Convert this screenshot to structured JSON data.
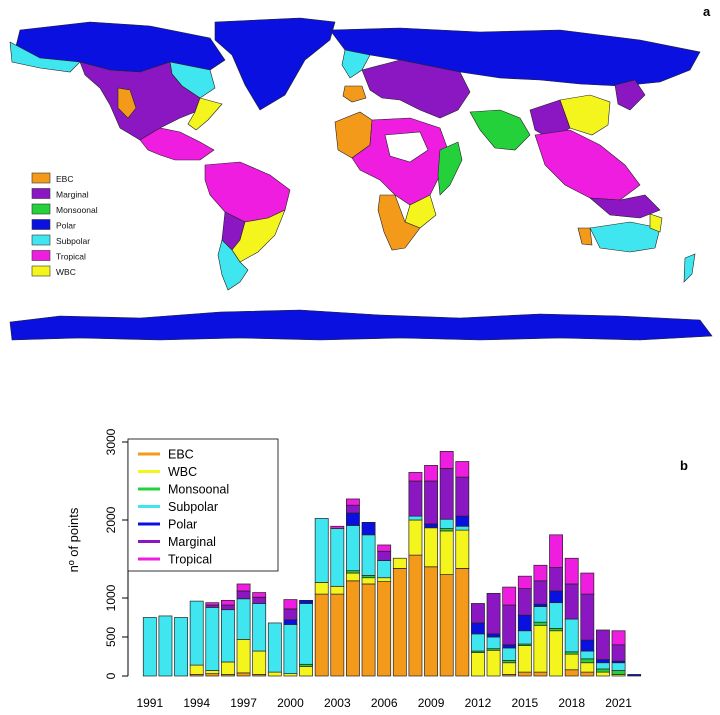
{
  "panels": {
    "a_label": "a",
    "b_label": "b"
  },
  "map": {
    "legend": [
      {
        "label": "EBC",
        "color": "#f39a1b"
      },
      {
        "label": "Marginal",
        "color": "#8a17c2"
      },
      {
        "label": "Monsoonal",
        "color": "#25d13a"
      },
      {
        "label": "Polar",
        "color": "#0a10e0"
      },
      {
        "label": "Subpolar",
        "color": "#3fe6f0"
      },
      {
        "label": "Tropical",
        "color": "#ee1de0"
      },
      {
        "label": "WBC",
        "color": "#f5f51e"
      }
    ]
  },
  "chart_data": {
    "type": "bar",
    "stacked": true,
    "ylabel": "nº of points",
    "ylim": [
      0,
      3100
    ],
    "yticks": [
      0,
      500,
      1000,
      2000,
      3000
    ],
    "xtick_labels": [
      "1991",
      "1994",
      "1997",
      "2000",
      "2003",
      "2006",
      "2009",
      "2012",
      "2015",
      "2018",
      "2021"
    ],
    "categories": [
      "1991",
      "1992",
      "1993",
      "1994",
      "1995",
      "1996",
      "1997",
      "1998",
      "1999",
      "2000",
      "2001",
      "2002",
      "2003",
      "2004",
      "2005",
      "2006",
      "2007",
      "2008",
      "2009",
      "2010",
      "2011",
      "2012",
      "2013",
      "2014",
      "2015",
      "2016",
      "2017",
      "2018",
      "2019",
      "2020",
      "2021",
      "2022"
    ],
    "legend_position": "top-left",
    "series": [
      {
        "name": "EBC",
        "color": "#f39a1b",
        "values": [
          0,
          0,
          0,
          20,
          30,
          20,
          40,
          20,
          0,
          0,
          0,
          1050,
          1050,
          1220,
          1180,
          1210,
          1380,
          1550,
          1400,
          1300,
          1380,
          0,
          0,
          20,
          50,
          50,
          0,
          80,
          50,
          0,
          0,
          0
        ]
      },
      {
        "name": "WBC",
        "color": "#f5f51e",
        "values": [
          0,
          0,
          0,
          120,
          40,
          160,
          430,
          300,
          50,
          30,
          120,
          150,
          100,
          100,
          80,
          50,
          130,
          450,
          500,
          560,
          490,
          300,
          330,
          150,
          340,
          600,
          580,
          200,
          120,
          50,
          20,
          0
        ]
      },
      {
        "name": "Monsoonal",
        "color": "#25d13a",
        "values": [
          0,
          0,
          0,
          0,
          0,
          0,
          0,
          0,
          0,
          0,
          30,
          0,
          0,
          30,
          30,
          0,
          0,
          0,
          0,
          30,
          0,
          20,
          20,
          30,
          20,
          40,
          30,
          30,
          50,
          40,
          50,
          0
        ]
      },
      {
        "name": "Subpolar",
        "color": "#3fe6f0",
        "values": [
          750,
          770,
          750,
          820,
          810,
          670,
          520,
          610,
          630,
          630,
          780,
          820,
          740,
          580,
          520,
          220,
          0,
          50,
          0,
          120,
          50,
          220,
          150,
          160,
          170,
          200,
          330,
          420,
          100,
          80,
          100,
          0
        ]
      },
      {
        "name": "Polar",
        "color": "#0a10e0",
        "values": [
          0,
          0,
          0,
          0,
          0,
          0,
          0,
          0,
          0,
          60,
          40,
          0,
          0,
          160,
          160,
          0,
          0,
          0,
          50,
          0,
          130,
          140,
          40,
          40,
          200,
          30,
          150,
          0,
          140,
          40,
          20,
          20
        ]
      },
      {
        "name": "Marginal",
        "color": "#8a17c2",
        "values": [
          0,
          0,
          0,
          0,
          30,
          60,
          100,
          80,
          0,
          140,
          0,
          0,
          0,
          100,
          0,
          120,
          0,
          450,
          550,
          650,
          500,
          250,
          520,
          510,
          340,
          300,
          300,
          450,
          590,
          380,
          210,
          0
        ]
      },
      {
        "name": "Tropical",
        "color": "#ee1de0",
        "values": [
          0,
          0,
          0,
          0,
          30,
          60,
          90,
          60,
          0,
          120,
          0,
          0,
          30,
          80,
          0,
          80,
          0,
          110,
          200,
          220,
          200,
          0,
          0,
          230,
          160,
          200,
          420,
          330,
          270,
          0,
          180,
          0
        ]
      }
    ]
  }
}
